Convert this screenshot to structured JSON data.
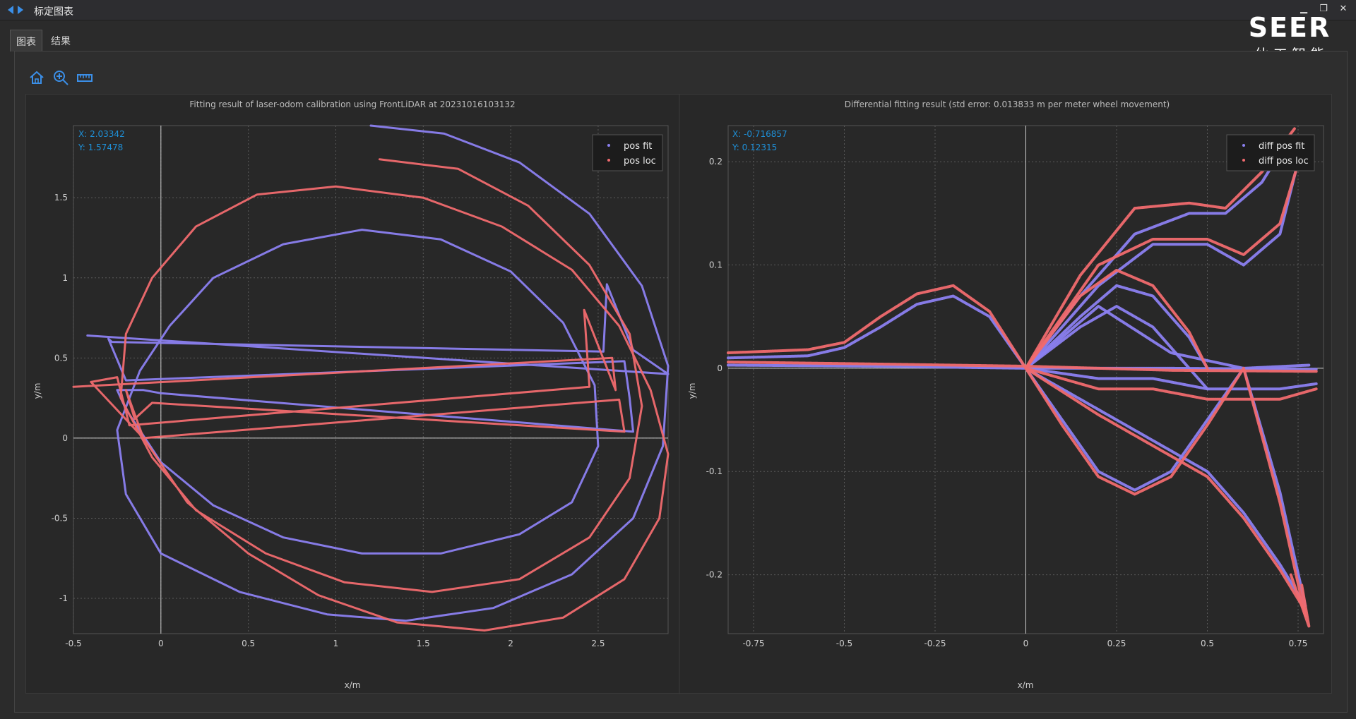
{
  "window": {
    "title": "标定图表"
  },
  "tabs": [
    {
      "label": "图表",
      "active": true
    },
    {
      "label": "结果",
      "active": false
    }
  ],
  "toolbar": {
    "icons": [
      "home-icon",
      "zoom-in-icon",
      "ruler-icon"
    ]
  },
  "brand": {
    "text_top": "SEER",
    "text_bottom": "仙 工 智 能"
  },
  "colors": {
    "fit": "#8b80f0",
    "loc": "#f06a6e",
    "cursor": "#1e90d8",
    "background": "#282828"
  },
  "chart_data": [
    {
      "type": "line",
      "title": "Fitting result of laser-odom calibration using FrontLiDAR at 20231016103132",
      "xlabel": "x/m",
      "ylabel": "y/m",
      "xlim": [
        -0.5,
        2.9
      ],
      "ylim": [
        -1.22,
        1.95
      ],
      "xticks": [
        "-0.5",
        "0",
        "0.5",
        "1",
        "1.5",
        "2",
        "2.5"
      ],
      "xtick_values": [
        -0.5,
        0,
        0.5,
        1,
        1.5,
        2,
        2.5
      ],
      "yticks": [
        "-1",
        "-0.5",
        "0",
        "0.5",
        "1",
        "1.5"
      ],
      "ytick_values": [
        -1,
        -0.5,
        0,
        0.5,
        1,
        1.5
      ],
      "grid": true,
      "legend_position": "top-right",
      "cursor_readout": {
        "x": "X: 2.03342",
        "y": "Y: 1.57478"
      },
      "series": [
        {
          "name": "pos fit",
          "color": "#8b80f0",
          "x": [
            1.2,
            1.62,
            2.05,
            2.45,
            2.75,
            2.9,
            2.87,
            2.7,
            2.35,
            1.9,
            1.4,
            0.95,
            0.45,
            0.0,
            -0.2,
            -0.25,
            -0.12,
            0.05,
            0.3,
            0.7,
            1.15,
            1.6,
            2.0,
            2.3,
            2.48,
            2.5,
            2.35,
            2.05,
            1.6,
            1.15,
            0.7,
            0.3,
            0.0,
            -0.2,
            -0.25,
            -0.1,
            0.0,
            2.7,
            2.68,
            2.65,
            -0.2,
            -0.3,
            -0.28,
            2.53,
            2.55,
            2.7,
            2.9,
            -0.42
          ],
          "y": [
            1.95,
            1.9,
            1.72,
            1.4,
            0.95,
            0.45,
            -0.05,
            -0.5,
            -0.85,
            -1.06,
            -1.14,
            -1.1,
            -0.96,
            -0.72,
            -0.35,
            0.05,
            0.42,
            0.7,
            1.0,
            1.21,
            1.3,
            1.24,
            1.04,
            0.72,
            0.33,
            -0.05,
            -0.4,
            -0.6,
            -0.72,
            -0.72,
            -0.62,
            -0.42,
            -0.15,
            0.18,
            0.3,
            0.3,
            0.28,
            0.04,
            0.25,
            0.48,
            0.36,
            0.62,
            0.6,
            0.54,
            0.96,
            0.55,
            0.4,
            0.64
          ]
        },
        {
          "name": "pos loc",
          "color": "#f06a6e",
          "x": [
            1.25,
            1.7,
            2.1,
            2.45,
            2.68,
            2.75,
            2.68,
            2.45,
            2.05,
            1.55,
            1.05,
            0.6,
            0.2,
            -0.05,
            -0.23,
            -0.2,
            -0.05,
            0.2,
            0.55,
            1.0,
            1.5,
            1.95,
            2.35,
            2.62,
            2.8,
            2.9,
            2.85,
            2.65,
            2.3,
            1.85,
            1.35,
            0.9,
            0.5,
            0.15,
            -0.1,
            -0.2,
            -0.15,
            -0.05,
            2.65,
            2.62,
            -0.1,
            -0.4,
            -0.25,
            -0.18,
            2.45,
            2.42,
            2.6,
            2.58,
            -0.5
          ],
          "y": [
            1.74,
            1.68,
            1.45,
            1.08,
            0.65,
            0.2,
            -0.25,
            -0.62,
            -0.88,
            -0.96,
            -0.9,
            -0.72,
            -0.45,
            -0.12,
            0.25,
            0.65,
            1.0,
            1.32,
            1.52,
            1.57,
            1.5,
            1.32,
            1.05,
            0.7,
            0.3,
            -0.1,
            -0.5,
            -0.88,
            -1.12,
            -1.2,
            -1.15,
            -0.98,
            -0.72,
            -0.4,
            0.0,
            0.3,
            0.12,
            0.22,
            0.04,
            0.24,
            0.0,
            0.35,
            0.38,
            0.08,
            0.32,
            0.8,
            0.3,
            0.5,
            0.32
          ]
        }
      ]
    },
    {
      "type": "scatter",
      "title": "Differential fitting result (std error: 0.013833 m per meter wheel movement)",
      "xlabel": "x/m",
      "ylabel": "y/m",
      "xlim": [
        -0.82,
        0.82
      ],
      "ylim": [
        -0.257,
        0.235
      ],
      "xticks": [
        "-0.75",
        "-0.5",
        "-0.25",
        "0",
        "0.25",
        "0.5",
        "0.75"
      ],
      "xtick_values": [
        -0.75,
        -0.5,
        -0.25,
        0,
        0.25,
        0.5,
        0.75
      ],
      "yticks": [
        "-0.2",
        "-0.1",
        "0",
        "0.1",
        "0.2"
      ],
      "ytick_values": [
        -0.2,
        -0.1,
        0,
        0.1,
        0.2
      ],
      "grid": true,
      "legend_position": "top-right",
      "cursor_readout": {
        "x": "X: -0.716857",
        "y": "Y: 0.12315"
      },
      "series": [
        {
          "name": "diff pos fit",
          "color": "#8b80f0",
          "paths": [
            {
              "x": [
                -0.82,
                -0.6,
                -0.5,
                -0.4,
                -0.3,
                -0.2,
                -0.1,
                0.0
              ],
              "y": [
                0.01,
                0.012,
                0.02,
                0.04,
                0.062,
                0.07,
                0.05,
                0.0
              ]
            },
            {
              "x": [
                -0.82,
                -0.4,
                0.0,
                0.4,
                0.8
              ],
              "y": [
                0.003,
                0.002,
                0.0,
                0.0,
                -0.001
              ]
            },
            {
              "x": [
                0.0,
                0.15,
                0.3,
                0.45,
                0.55,
                0.65,
                0.73
              ],
              "y": [
                0.0,
                0.07,
                0.13,
                0.15,
                0.15,
                0.18,
                0.225
              ]
            },
            {
              "x": [
                0.0,
                0.2,
                0.35,
                0.5,
                0.6,
                0.7,
                0.75
              ],
              "y": [
                0.0,
                0.08,
                0.12,
                0.12,
                0.1,
                0.13,
                0.2
              ]
            },
            {
              "x": [
                0.0,
                0.15,
                0.25,
                0.35,
                0.45,
                0.5
              ],
              "y": [
                0.0,
                0.05,
                0.08,
                0.07,
                0.03,
                0.0
              ]
            },
            {
              "x": [
                0.0,
                0.15,
                0.25,
                0.35,
                0.45,
                0.5
              ],
              "y": [
                0.0,
                0.04,
                0.06,
                0.04,
                0.0,
                -0.02
              ]
            },
            {
              "x": [
                0.0,
                0.2,
                0.35,
                0.5,
                0.7,
                0.8
              ],
              "y": [
                0.0,
                -0.01,
                -0.01,
                -0.02,
                -0.02,
                -0.015
              ]
            },
            {
              "x": [
                0.0,
                0.2,
                0.4,
                0.6,
                0.78
              ],
              "y": [
                0.0,
                0.06,
                0.015,
                0.0,
                0.003
              ]
            },
            {
              "x": [
                0.0,
                0.1,
                0.2,
                0.3,
                0.4,
                0.5,
                0.6,
                0.7,
                0.77
              ],
              "y": [
                0.0,
                -0.05,
                -0.1,
                -0.118,
                -0.1,
                -0.05,
                0.0,
                -0.12,
                -0.23
              ]
            },
            {
              "x": [
                0.0,
                0.2,
                0.35,
                0.5,
                0.6,
                0.7,
                0.77
              ],
              "y": [
                0.0,
                -0.04,
                -0.07,
                -0.1,
                -0.14,
                -0.19,
                -0.23
              ]
            }
          ]
        },
        {
          "name": "diff pos loc",
          "color": "#f06a6e",
          "paths": [
            {
              "x": [
                -0.82,
                -0.6,
                -0.5,
                -0.4,
                -0.3,
                -0.2,
                -0.1,
                0.0
              ],
              "y": [
                0.015,
                0.018,
                0.025,
                0.05,
                0.072,
                0.08,
                0.055,
                0.0
              ]
            },
            {
              "x": [
                -0.82,
                -0.4,
                0.0,
                0.4,
                0.8
              ],
              "y": [
                0.006,
                0.004,
                0.002,
                -0.002,
                -0.003
              ]
            },
            {
              "x": [
                0.0,
                0.15,
                0.3,
                0.45,
                0.55,
                0.65,
                0.74
              ],
              "y": [
                0.0,
                0.09,
                0.155,
                0.16,
                0.155,
                0.19,
                0.232
              ]
            },
            {
              "x": [
                0.0,
                0.2,
                0.35,
                0.5,
                0.6,
                0.7,
                0.76
              ],
              "y": [
                0.0,
                0.1,
                0.125,
                0.125,
                0.11,
                0.14,
                0.21
              ]
            },
            {
              "x": [
                0.0,
                0.15,
                0.25,
                0.35,
                0.45,
                0.5
              ],
              "y": [
                0.0,
                0.07,
                0.095,
                0.08,
                0.035,
                0.0
              ]
            },
            {
              "x": [
                0.0,
                0.2,
                0.35,
                0.5,
                0.7,
                0.8
              ],
              "y": [
                0.0,
                -0.02,
                -0.02,
                -0.03,
                -0.03,
                -0.02
              ]
            },
            {
              "x": [
                0.0,
                0.1,
                0.2,
                0.3,
                0.4,
                0.5,
                0.6,
                0.7,
                0.77
              ],
              "y": [
                0.0,
                -0.055,
                -0.105,
                -0.122,
                -0.105,
                -0.055,
                0.0,
                -0.13,
                -0.24
              ]
            },
            {
              "x": [
                0.0,
                0.2,
                0.35,
                0.5,
                0.6,
                0.7,
                0.77
              ],
              "y": [
                0.0,
                -0.045,
                -0.075,
                -0.105,
                -0.145,
                -0.195,
                -0.235
              ]
            },
            {
              "x": [
                0.73,
                0.75,
                0.77,
                0.78,
                0.76
              ],
              "y": [
                -0.2,
                -0.22,
                -0.24,
                -0.25,
                -0.21
              ]
            }
          ]
        }
      ]
    }
  ]
}
